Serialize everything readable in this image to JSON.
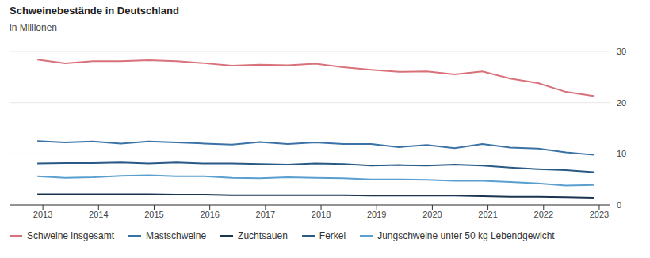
{
  "chart_data": {
    "type": "line",
    "title": "Schweinebestände in Deutschland",
    "subtitle": "in Millionen",
    "x": [
      2012.9,
      2013.4,
      2013.9,
      2014.4,
      2014.9,
      2015.4,
      2015.9,
      2016.4,
      2016.9,
      2017.4,
      2017.9,
      2018.4,
      2018.9,
      2019.4,
      2019.9,
      2020.4,
      2020.9,
      2021.4,
      2021.9,
      2022.4,
      2022.9
    ],
    "series": [
      {
        "name": "Schweine insgesamt",
        "color": "#d9717b",
        "values": [
          28.4,
          27.7,
          28.1,
          28.1,
          28.3,
          28.1,
          27.7,
          27.2,
          27.4,
          27.3,
          27.6,
          26.9,
          26.4,
          26.0,
          26.1,
          25.5,
          26.1,
          24.7,
          23.8,
          22.1,
          21.3
        ]
      },
      {
        "name": "Mastschweine",
        "color": "#3a72a6",
        "values": [
          12.5,
          12.2,
          12.4,
          12.0,
          12.4,
          12.2,
          12.0,
          11.8,
          12.3,
          11.9,
          12.2,
          11.9,
          11.9,
          11.3,
          11.7,
          11.1,
          11.9,
          11.2,
          11.0,
          10.3,
          9.8
        ]
      },
      {
        "name": "Zuchtsauen",
        "color": "#1b3550",
        "values": [
          2.1,
          2.1,
          2.1,
          2.1,
          2.1,
          2.0,
          2.0,
          1.9,
          1.9,
          1.9,
          1.9,
          1.9,
          1.8,
          1.8,
          1.8,
          1.8,
          1.7,
          1.6,
          1.6,
          1.5,
          1.4
        ]
      },
      {
        "name": "Ferkel",
        "color": "#285a85",
        "values": [
          8.1,
          8.2,
          8.2,
          8.3,
          8.1,
          8.3,
          8.1,
          8.1,
          8.0,
          7.9,
          8.1,
          8.0,
          7.7,
          7.8,
          7.7,
          7.9,
          7.7,
          7.3,
          7.0,
          6.8,
          6.4
        ]
      },
      {
        "name": "Jungschweine unter 50 kg Lebendgewicht",
        "color": "#5a9fd0",
        "values": [
          5.6,
          5.3,
          5.4,
          5.7,
          5.8,
          5.6,
          5.6,
          5.3,
          5.2,
          5.4,
          5.3,
          5.2,
          5.0,
          5.0,
          4.9,
          4.7,
          4.7,
          4.5,
          4.2,
          3.8,
          3.9
        ]
      }
    ],
    "xlim": [
      2012.4,
      2023.2
    ],
    "xticks": [
      2013,
      2014,
      2015,
      2016,
      2017,
      2018,
      2019,
      2020,
      2021,
      2022,
      2023
    ],
    "ylim": [
      0,
      30
    ],
    "yticks": [
      0,
      10,
      20,
      30
    ],
    "grid": true,
    "legend": "bottom"
  }
}
